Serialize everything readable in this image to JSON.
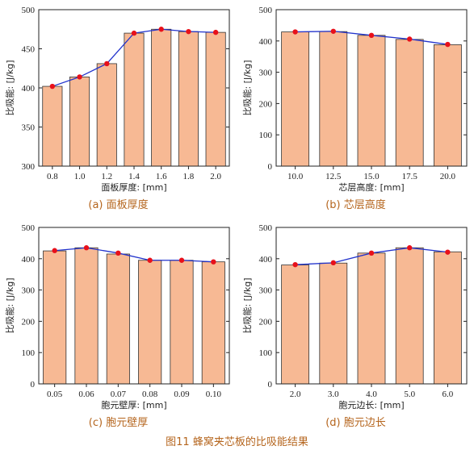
{
  "figure_title": "图11 蜂窝夹芯板的比吸能结果",
  "colors": {
    "bar_fill": "#f7b994",
    "bar_stroke": "#333333",
    "line": "#2233cc",
    "marker": "#e8101a",
    "caption": "#b5651d"
  },
  "chart_data": [
    {
      "type": "bar",
      "caption": "(a) 面板厚度",
      "xlabel": "面板厚度: [mm]",
      "ylabel": "比吸能: [J/kg]",
      "ylim": [
        300,
        500
      ],
      "yticks": [
        300,
        350,
        400,
        450,
        500
      ],
      "categories": [
        "0.8",
        "1.0",
        "1.2",
        "1.4",
        "1.6",
        "1.8",
        "2.0"
      ],
      "values": [
        402,
        414,
        431,
        470,
        475,
        472,
        471
      ],
      "line_values": [
        402,
        414,
        431,
        470,
        475,
        472,
        471
      ]
    },
    {
      "type": "bar",
      "caption": "(b) 芯层高度",
      "xlabel": "芯层高度: [mm]",
      "ylabel": "比吸能: [J/kg]",
      "ylim": [
        0,
        500
      ],
      "yticks": [
        0,
        100,
        200,
        300,
        400,
        500
      ],
      "categories": [
        "10.0",
        "12.5",
        "15.0",
        "17.5",
        "20.0"
      ],
      "values": [
        429,
        430,
        418,
        405,
        388
      ],
      "line_values": [
        429,
        431,
        418,
        406,
        389
      ]
    },
    {
      "type": "bar",
      "caption": "(c) 胞元壁厚",
      "xlabel": "胞元壁厚: [mm]",
      "ylabel": "比吸能: [J/kg]",
      "ylim": [
        0,
        500
      ],
      "yticks": [
        0,
        100,
        200,
        300,
        400,
        500
      ],
      "categories": [
        "0.05",
        "0.06",
        "0.07",
        "0.08",
        "0.09",
        "0.10"
      ],
      "values": [
        425,
        435,
        415,
        395,
        395,
        390
      ],
      "line_values": [
        426,
        435,
        418,
        395,
        395,
        390
      ]
    },
    {
      "type": "bar",
      "caption": "(d) 胞元边长",
      "xlabel": "胞元边长: [mm]",
      "ylabel": "比吸能: [J/kg]",
      "ylim": [
        0,
        500
      ],
      "yticks": [
        0,
        100,
        200,
        300,
        400,
        500
      ],
      "categories": [
        "2.0",
        "3.0",
        "4.0",
        "5.0",
        "6.0"
      ],
      "values": [
        380,
        386,
        418,
        435,
        422
      ],
      "line_values": [
        381,
        387,
        418,
        435,
        421
      ]
    }
  ]
}
